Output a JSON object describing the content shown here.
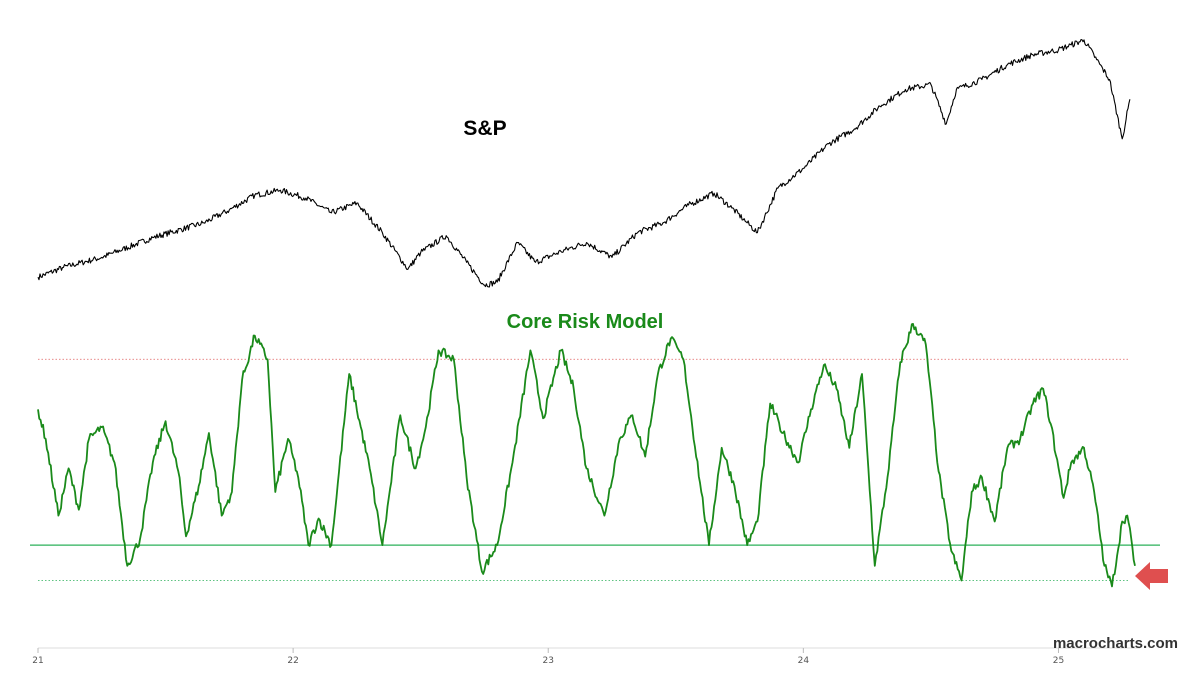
{
  "chart_data": [
    {
      "type": "line",
      "title": "S&P",
      "series": [
        {
          "color": "#000000",
          "points": [
            [
              21.0,
              3700
            ],
            [
              21.1,
              3800
            ],
            [
              21.25,
              3900
            ],
            [
              21.45,
              4100
            ],
            [
              21.65,
              4250
            ],
            [
              21.75,
              4380
            ],
            [
              21.85,
              4530
            ],
            [
              21.95,
              4580
            ],
            [
              22.05,
              4500
            ],
            [
              22.15,
              4350
            ],
            [
              22.25,
              4450
            ],
            [
              22.35,
              4150
            ],
            [
              22.45,
              3780
            ],
            [
              22.5,
              3950
            ],
            [
              22.6,
              4120
            ],
            [
              22.68,
              3850
            ],
            [
              22.75,
              3620
            ],
            [
              22.8,
              3650
            ],
            [
              22.88,
              4050
            ],
            [
              22.95,
              3850
            ],
            [
              23.05,
              3960
            ],
            [
              23.15,
              4050
            ],
            [
              23.25,
              3900
            ],
            [
              23.35,
              4150
            ],
            [
              23.45,
              4250
            ],
            [
              23.55,
              4430
            ],
            [
              23.65,
              4550
            ],
            [
              23.72,
              4400
            ],
            [
              23.78,
              4250
            ],
            [
              23.82,
              4150
            ],
            [
              23.9,
              4600
            ],
            [
              24.0,
              4800
            ],
            [
              24.1,
              5050
            ],
            [
              24.2,
              5200
            ],
            [
              24.3,
              5430
            ],
            [
              24.4,
              5600
            ],
            [
              24.5,
              5650
            ],
            [
              24.56,
              5250
            ],
            [
              24.6,
              5600
            ],
            [
              24.7,
              5700
            ],
            [
              24.8,
              5850
            ],
            [
              24.9,
              5950
            ],
            [
              25.0,
              6000
            ],
            [
              25.05,
              6050
            ],
            [
              25.1,
              6100
            ],
            [
              25.15,
              5900
            ],
            [
              25.2,
              5700
            ],
            [
              25.25,
              5100
            ],
            [
              25.28,
              5500
            ]
          ]
        }
      ]
    },
    {
      "type": "line",
      "title": "Core Risk Model",
      "ylim": [
        0,
        100
      ],
      "reference_lines": [
        {
          "value": 85,
          "color": "#e06060",
          "style": "dotted"
        },
        {
          "value": 22,
          "color": "#2bb05a",
          "style": "solid"
        },
        {
          "value": 10,
          "color": "#2bb05a",
          "style": "dotted"
        }
      ],
      "series": [
        {
          "color": "#1a8a1a",
          "points": [
            [
              21.0,
              68
            ],
            [
              21.03,
              58
            ],
            [
              21.08,
              32
            ],
            [
              21.12,
              48
            ],
            [
              21.16,
              34
            ],
            [
              21.2,
              58
            ],
            [
              21.25,
              62
            ],
            [
              21.3,
              50
            ],
            [
              21.35,
              15
            ],
            [
              21.4,
              24
            ],
            [
              21.45,
              50
            ],
            [
              21.5,
              64
            ],
            [
              21.55,
              47
            ],
            [
              21.58,
              25
            ],
            [
              21.63,
              42
            ],
            [
              21.67,
              60
            ],
            [
              21.72,
              32
            ],
            [
              21.76,
              40
            ],
            [
              21.8,
              78
            ],
            [
              21.85,
              93
            ],
            [
              21.9,
              85
            ],
            [
              21.93,
              40
            ],
            [
              21.98,
              58
            ],
            [
              22.02,
              45
            ],
            [
              22.06,
              22
            ],
            [
              22.1,
              31
            ],
            [
              22.15,
              22
            ],
            [
              22.22,
              80
            ],
            [
              22.3,
              48
            ],
            [
              22.35,
              22
            ],
            [
              22.42,
              66
            ],
            [
              22.48,
              48
            ],
            [
              22.52,
              62
            ],
            [
              22.57,
              88
            ],
            [
              22.63,
              85
            ],
            [
              22.68,
              45
            ],
            [
              22.74,
              13
            ],
            [
              22.8,
              22
            ],
            [
              22.86,
              50
            ],
            [
              22.93,
              88
            ],
            [
              22.98,
              65
            ],
            [
              23.05,
              88
            ],
            [
              23.1,
              75
            ],
            [
              23.15,
              48
            ],
            [
              23.22,
              32
            ],
            [
              23.28,
              58
            ],
            [
              23.33,
              66
            ],
            [
              23.38,
              52
            ],
            [
              23.43,
              80
            ],
            [
              23.48,
              92
            ],
            [
              23.53,
              85
            ],
            [
              23.6,
              40
            ],
            [
              23.63,
              22
            ],
            [
              23.68,
              55
            ],
            [
              23.73,
              42
            ],
            [
              23.78,
              22
            ],
            [
              23.82,
              30
            ],
            [
              23.87,
              70
            ],
            [
              23.92,
              60
            ],
            [
              23.98,
              50
            ],
            [
              24.03,
              68
            ],
            [
              24.08,
              83
            ],
            [
              24.13,
              75
            ],
            [
              24.18,
              55
            ],
            [
              24.23,
              80
            ],
            [
              24.28,
              15
            ],
            [
              24.33,
              45
            ],
            [
              24.38,
              84
            ],
            [
              24.43,
              97
            ],
            [
              24.48,
              90
            ],
            [
              24.53,
              47
            ],
            [
              24.58,
              20
            ],
            [
              24.62,
              10
            ],
            [
              24.66,
              40
            ],
            [
              24.7,
              45
            ],
            [
              24.75,
              30
            ],
            [
              24.8,
              55
            ],
            [
              24.85,
              58
            ],
            [
              24.9,
              70
            ],
            [
              24.94,
              75
            ],
            [
              24.97,
              63
            ],
            [
              25.02,
              38
            ],
            [
              25.05,
              50
            ],
            [
              25.1,
              55
            ],
            [
              25.14,
              40
            ],
            [
              25.18,
              15
            ],
            [
              25.21,
              8
            ],
            [
              25.25,
              30
            ],
            [
              25.27,
              32
            ],
            [
              25.3,
              15
            ]
          ]
        }
      ]
    }
  ],
  "xaxis": {
    "ticks": [
      21,
      22,
      23,
      24,
      25
    ],
    "tick_labels": [
      "21",
      "22",
      "23",
      "24",
      "25"
    ]
  },
  "watermark": "macrocharts.com",
  "arrow_color": "#d93030"
}
